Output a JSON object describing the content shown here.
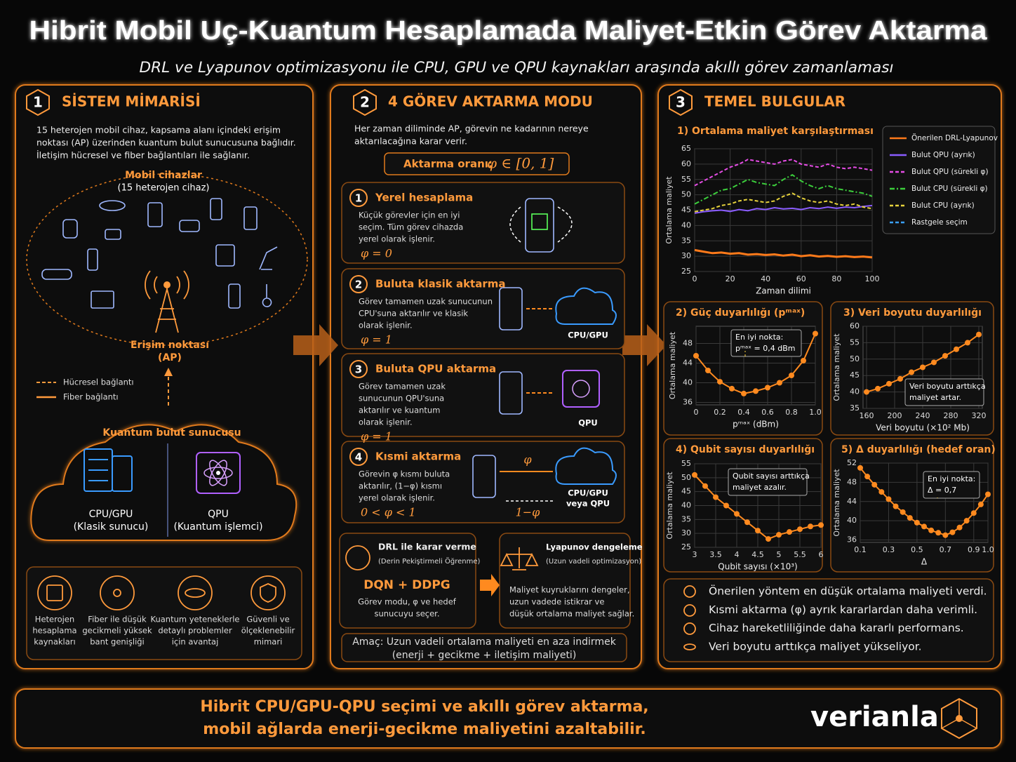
{
  "header": {
    "title": "Hibrit Mobil Uç-Kuantum Hesaplamada Maliyet-Etkin Görev Aktarma",
    "subtitle": "DRL ve Lyapunov optimizasyonu ile CPU, GPU ve QPU kaynakları araşında akıllı görev zamanlaması"
  },
  "panel1": {
    "number": "1",
    "title": "SİSTEM MİMARİSİ",
    "intro": [
      "15 heterojen mobil cihaz, kapsama alanı içindeki erişim",
      "noktası (AP) üzerinden kuantum bulut sunucusuna bağlıdır.",
      "İletişim hücresel ve fiber bağlantıları ile sağlanır."
    ],
    "devices": "Mobil cihazlar",
    "devices_sub": "(15 heterojen cihaz)",
    "ap": [
      "Erişim noktası",
      "(AP)"
    ],
    "legend": [
      "Hücresel bağlantı",
      "Fiber bağlantı"
    ],
    "cloud": "Kuantum bulut sunucusu",
    "cpu": "CPU/GPU",
    "cpu_sub": "(Klasik sunucu)",
    "qpu": "QPU",
    "qpu_sub": "(Kuantum işlemci)",
    "features": [
      [
        "Heterojen",
        "hesaplama",
        "kaynakları"
      ],
      [
        "Fiber ile düşük",
        "gecikmeli yüksek",
        "bant genişliği"
      ],
      [
        "Kuantum yeteneklerle",
        "detaylı problemler",
        "için avantaj"
      ],
      [
        "Güvenli ve",
        "ölçeklenebilir",
        "mimari"
      ]
    ]
  },
  "panel2": {
    "number": "2",
    "title": "4 GÖREV AKTARMA MODU",
    "intro": [
      "Her zaman diliminde AP, görevin ne kadarının nereye",
      "aktarılacağına karar verir."
    ],
    "ratio_label": "Aktarma oranı:",
    "ratio_formula": "φ ∈ [0, 1]",
    "modes": [
      {
        "num": "1",
        "title": "Yerel hesaplama",
        "desc": [
          "Küçük görevler için en iyi",
          "seçim. Tüm görev cihazda",
          "yerel olarak işlenir."
        ],
        "formula": "φ = 0"
      },
      {
        "num": "2",
        "title": "Buluta klasik aktarma",
        "desc": [
          "Görev tamamen uzak sunucunun",
          "CPU'suna aktarılır ve klasik",
          "olarak işlenir."
        ],
        "formula": "φ = 1",
        "target": [
          "CPU/GPU"
        ]
      },
      {
        "num": "3",
        "title": "Buluta QPU aktarma",
        "desc": [
          "Görev tamamen uzak",
          "sunucunun QPU'suna",
          "aktarılır ve kuantum",
          "olarak işlenir."
        ],
        "formula": "φ = 1",
        "target": [
          "QPU"
        ]
      },
      {
        "num": "4",
        "title": "Kısmi aktarma",
        "desc": [
          "Görevin φ kısmı buluta",
          "aktarılır, (1−φ) kısmı",
          "yerel olarak işlenir."
        ],
        "formula": "0 < φ < 1",
        "target": [
          "CPU/GPU",
          "veya QPU"
        ],
        "arrow_top": "φ",
        "arrow_bottom": "1−φ"
      }
    ],
    "drl": {
      "title": "DRL ile karar verme",
      "subtitle": "(Derin Pekiştirmeli Öğrenme)",
      "algo": "DQN + DDPG",
      "desc": [
        "Görev modu, φ ve hedef",
        "sunucuyu seçer."
      ]
    },
    "lyapunov": {
      "title": "Lyapunov dengeleme",
      "subtitle": "(Uzun vadeli optimizasyon)",
      "desc": [
        "Maliyet kuyruklarını dengeler,",
        "uzun vadede istikrar ve",
        "düşük ortalama maliyet sağlar."
      ]
    },
    "goal": [
      "Amaç: Uzun vadeli ortalama maliyeti en aza indirmek",
      "(enerji + gecikme + iletişim maliyeti)"
    ]
  },
  "panel3": {
    "number": "3",
    "title": "TEMEL BULGULAR",
    "findings": [
      "Önerilen yöntem en düşük ortalama maliyeti verdi.",
      "Kısmi aktarma (φ) ayrık kararlardan daha verimli.",
      "Cihaz hareketliliğinde daha kararlı performans.",
      "Veri boyutu arttıkça maliyet yükseliyor."
    ]
  },
  "chart_data": [
    {
      "type": "line",
      "title": "1) Ortalama maliyet karşılaştırması",
      "xlabel": "Zaman dilimi",
      "ylabel": "Ortalama maliyet",
      "x": [
        0,
        5,
        10,
        15,
        20,
        25,
        30,
        35,
        40,
        45,
        50,
        55,
        60,
        65,
        70,
        75,
        80,
        85,
        90,
        95,
        100
      ],
      "xlim": [
        0,
        100
      ],
      "xticks": [
        0,
        20,
        40,
        60,
        80,
        100
      ],
      "ylim": [
        25,
        65
      ],
      "yticks": [
        25,
        30,
        35,
        40,
        45,
        50,
        55,
        60,
        65
      ],
      "grid": true,
      "legend": "right",
      "series": [
        {
          "name": "Önerilen DRL-Lyapunov",
          "color": "#ff7a1a",
          "dash": "solid",
          "values": [
            32,
            31.5,
            31,
            31.2,
            30.8,
            31,
            30.5,
            30.7,
            30.4,
            30.6,
            30.2,
            30.5,
            30,
            30.3,
            29.9,
            30.1,
            29.8,
            30,
            29.7,
            29.9,
            29.6
          ]
        },
        {
          "name": "Bulut QPU (ayrık)",
          "color": "#8a5cff",
          "dash": "solid",
          "values": [
            44,
            44.5,
            44.8,
            45,
            44.6,
            45.2,
            44.8,
            45.5,
            45.2,
            45.8,
            45.4,
            45.6,
            45.2,
            45.8,
            45.5,
            46,
            45.6,
            46,
            45.8,
            46.2,
            46.5
          ]
        },
        {
          "name": "Bulut QPU (sürekli φ)",
          "color": "#e64ce6",
          "dash": "dashed",
          "values": [
            53,
            54.5,
            56,
            57.5,
            59,
            60,
            61.5,
            61,
            60.5,
            60,
            61,
            61.5,
            60,
            59.5,
            59,
            60,
            59,
            58.5,
            59,
            58.5,
            58
          ]
        },
        {
          "name": "Bulut CPU (sürekli φ)",
          "color": "#3ccf3c",
          "dash": "dashdot",
          "values": [
            47,
            48.5,
            50,
            51.5,
            52,
            53.5,
            55,
            54,
            53.5,
            53,
            55,
            56.5,
            54.5,
            53,
            52,
            53,
            52,
            51.5,
            51,
            50.5,
            49.5
          ]
        },
        {
          "name": "Bulut CPU (ayrık)",
          "color": "#e6d23c",
          "dash": "dashed",
          "values": [
            44.5,
            45,
            45.5,
            46.5,
            47,
            48,
            48.5,
            48,
            47.5,
            48,
            49.5,
            50.5,
            49,
            48,
            47.5,
            48,
            47,
            46.5,
            47,
            46,
            45.5
          ]
        },
        {
          "name": "Rastgele seçim",
          "color": "#3aa0ff",
          "dash": "dashed",
          "values": [
            null,
            null,
            null,
            null,
            null,
            null,
            null,
            null,
            null,
            null,
            null,
            null,
            null,
            null,
            null,
            null,
            null,
            null,
            null,
            null,
            null
          ]
        }
      ]
    },
    {
      "type": "line",
      "title": "2) Güç duyarlılığı (pᵐᵃˣ)",
      "xlabel": "pᵐᵃˣ (dBm)",
      "ylabel": "Ortalama maliyet",
      "markers": true,
      "x": [
        0,
        0.1,
        0.2,
        0.3,
        0.4,
        0.5,
        0.6,
        0.7,
        0.8,
        0.9,
        1.0
      ],
      "xlim": [
        0,
        1
      ],
      "xticks": [
        0,
        0.2,
        0.4,
        0.6,
        0.8,
        {
          "value": 1,
          "label": "1.0"
        }
      ],
      "ylim": [
        35.5,
        51.5
      ],
      "yticks": [
        36,
        40,
        44,
        48
      ],
      "grid": true,
      "series": [
        {
          "name": "Ortalama maliyet",
          "color": "#ff8a1f",
          "dash": "solid",
          "values": [
            45.5,
            42.5,
            40.2,
            38.8,
            37.8,
            38.3,
            39,
            40,
            41.5,
            44.5,
            50
          ]
        }
      ],
      "annotation": [
        "En iyi nokta:",
        "pᵐᵃˣ = 0,4 dBm"
      ]
    },
    {
      "type": "line",
      "title": "3) Veri boyutu duyarlılığı",
      "xlabel": "Veri boyutu (×10² Mb)",
      "ylabel": "Ortalama maliyet",
      "markers": true,
      "x": [
        160,
        176,
        192,
        208,
        224,
        240,
        256,
        272,
        288,
        304,
        320
      ],
      "xlim": [
        155,
        325
      ],
      "xticks": [
        160,
        200,
        240,
        280,
        320
      ],
      "ylim": [
        35,
        60
      ],
      "yticks": [
        35,
        40,
        45,
        50,
        55,
        60
      ],
      "grid": true,
      "series": [
        {
          "name": "Ortalama maliyet",
          "color": "#ff8a1f",
          "dash": "solid",
          "values": [
            40,
            41,
            42.5,
            44,
            46,
            47.5,
            49,
            51,
            53,
            55,
            57.5
          ]
        }
      ],
      "annotation": [
        "Veri boyutu arttıkça",
        "maliyet artar."
      ]
    },
    {
      "type": "line",
      "title": "4) Qubit sayısı duyarlılığı",
      "xlabel": "Qubit sayısı (×10³)",
      "ylabel": "Ortalama maliyet",
      "markers": true,
      "x": [
        3,
        3.25,
        3.5,
        3.75,
        4,
        4.25,
        4.5,
        4.75,
        5,
        5.25,
        5.5,
        5.75,
        6
      ],
      "xlim": [
        3,
        6
      ],
      "xticks": [
        3,
        3.5,
        4,
        4.5,
        5,
        5.5,
        6
      ],
      "ylim": [
        25,
        55
      ],
      "yticks": [
        25,
        30,
        35,
        40,
        45,
        50,
        55
      ],
      "grid": true,
      "series": [
        {
          "name": "Ortalama maliyet",
          "color": "#ff8a1f",
          "dash": "solid",
          "values": [
            51,
            47,
            43,
            40,
            37,
            34,
            31,
            28,
            29.5,
            30.5,
            31.5,
            32.5,
            33
          ]
        }
      ],
      "annotation": [
        "Qubit sayısı arttıkça",
        "maliyet azalır."
      ]
    },
    {
      "type": "line",
      "title": "5) Δ duyarlılığı (hedef oran)",
      "xlabel": "Δ",
      "ylabel": "Ortalama maliyet",
      "markers": true,
      "x": [
        0.1,
        0.15,
        0.2,
        0.25,
        0.3,
        0.35,
        0.4,
        0.45,
        0.5,
        0.55,
        0.6,
        0.65,
        0.7,
        0.75,
        0.8,
        0.85,
        0.9,
        0.95,
        1.0
      ],
      "xlim": [
        0.1,
        1
      ],
      "xticks": [
        0.1,
        0.3,
        0.5,
        0.7,
        0.9,
        {
          "value": 1,
          "label": "1.0"
        }
      ],
      "ylim": [
        35.5,
        52
      ],
      "yticks": [
        36,
        40,
        44,
        48,
        52
      ],
      "grid": true,
      "series": [
        {
          "name": "Ortalama maliyet",
          "color": "#ff8a1f",
          "dash": "solid",
          "values": [
            51,
            49.2,
            47.5,
            46,
            44.5,
            43,
            41.8,
            40.6,
            39.6,
            38.8,
            38,
            37.5,
            37,
            37.6,
            38.6,
            40,
            41.6,
            43.4,
            45.5
          ]
        }
      ],
      "annotation": [
        "En iyi nokta:",
        "Δ = 0,7"
      ]
    }
  ],
  "footer": {
    "lines": [
      "Hibrit CPU/GPU-QPU seçimi ve akıllı görev aktarma,",
      "mobil ağlarda enerji-gecikme maliyetini azaltabilir."
    ],
    "brand": "verianla"
  }
}
